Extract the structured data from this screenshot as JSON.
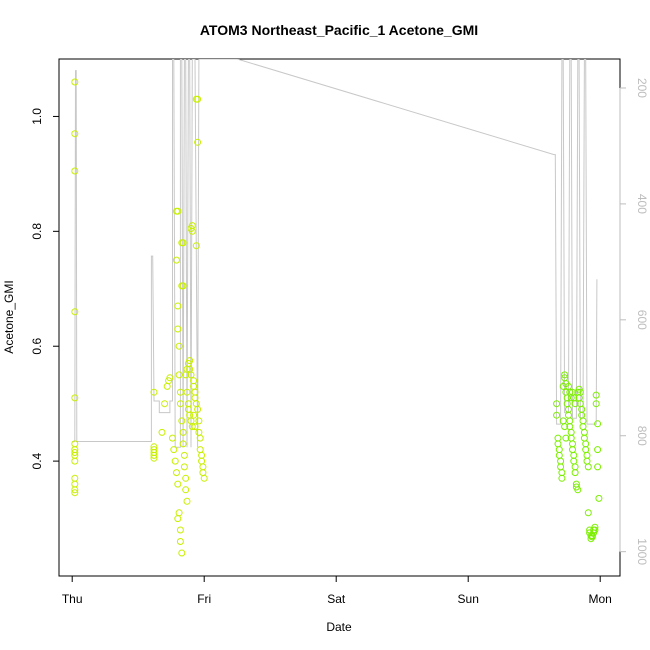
{
  "chart_data": {
    "type": "scatter",
    "title": "ATOM3 Northeast_Pacific_1 Acetone_GMI",
    "xlabel": "Date",
    "ylabel": "Acetone_GMI",
    "x_ticks": [
      "Thu",
      "Fri",
      "Sat",
      "Sun",
      "Mon"
    ],
    "x_unit": "days since Thursday 00:00",
    "xlim": [
      -0.1,
      4.15
    ],
    "ylim": [
      0.2,
      1.1
    ],
    "y_ticks": [
      0.4,
      0.6,
      0.8,
      1.0
    ],
    "y_tick_labels": [
      "0.4",
      "0.6",
      "0.8",
      "1.0"
    ],
    "y2_ticks": [
      200,
      400,
      600,
      800,
      1000
    ],
    "y2_tick_labels": [
      "200",
      "400",
      "600",
      "800",
      "1000"
    ],
    "y2lim": [
      1042,
      150
    ],
    "colors": {
      "points_early": "#c8f000",
      "points_late": "#7cf000",
      "pressure_line": "#c8c8c8",
      "axes": "#000000",
      "right_axis": "#bdbdbd"
    },
    "series": [
      {
        "role": "acetone",
        "color_key": "points_early",
        "points": [
          [
            0.02,
            1.06
          ],
          [
            0.02,
            0.97
          ],
          [
            0.02,
            0.905
          ],
          [
            0.02,
            0.66
          ],
          [
            0.02,
            0.51
          ],
          [
            0.02,
            0.43
          ],
          [
            0.02,
            0.42
          ],
          [
            0.02,
            0.415
          ],
          [
            0.02,
            0.41
          ],
          [
            0.02,
            0.4
          ],
          [
            0.02,
            0.37
          ],
          [
            0.02,
            0.36
          ],
          [
            0.02,
            0.35
          ],
          [
            0.02,
            0.345
          ],
          [
            0.62,
            0.52
          ],
          [
            0.62,
            0.425
          ],
          [
            0.62,
            0.42
          ],
          [
            0.62,
            0.415
          ],
          [
            0.62,
            0.41
          ],
          [
            0.62,
            0.405
          ],
          [
            0.68,
            0.45
          ],
          [
            0.7,
            0.5
          ],
          [
            0.72,
            0.53
          ],
          [
            0.73,
            0.54
          ],
          [
            0.74,
            0.545
          ],
          [
            0.76,
            0.44
          ],
          [
            0.77,
            0.42
          ],
          [
            0.78,
            0.4
          ],
          [
            0.79,
            0.38
          ],
          [
            0.8,
            0.36
          ],
          [
            0.8,
            0.3
          ],
          [
            0.81,
            0.31
          ],
          [
            0.82,
            0.28
          ],
          [
            0.82,
            0.26
          ],
          [
            0.83,
            0.24
          ],
          [
            0.79,
            0.835
          ],
          [
            0.8,
            0.835
          ],
          [
            0.79,
            0.75
          ],
          [
            0.8,
            0.67
          ],
          [
            0.8,
            0.63
          ],
          [
            0.83,
            0.78
          ],
          [
            0.84,
            0.78
          ],
          [
            0.83,
            0.705
          ],
          [
            0.84,
            0.705
          ],
          [
            0.81,
            0.6
          ],
          [
            0.81,
            0.55
          ],
          [
            0.82,
            0.52
          ],
          [
            0.82,
            0.5
          ],
          [
            0.83,
            0.47
          ],
          [
            0.84,
            0.45
          ],
          [
            0.84,
            0.43
          ],
          [
            0.85,
            0.41
          ],
          [
            0.85,
            0.39
          ],
          [
            0.86,
            0.37
          ],
          [
            0.86,
            0.35
          ],
          [
            0.87,
            0.33
          ],
          [
            0.87,
            0.56
          ],
          [
            0.88,
            0.57
          ],
          [
            0.89,
            0.575
          ],
          [
            0.89,
            0.56
          ],
          [
            0.9,
            0.55
          ],
          [
            0.9,
            0.805
          ],
          [
            0.91,
            0.8
          ],
          [
            0.91,
            0.81
          ],
          [
            0.88,
            0.49
          ],
          [
            0.89,
            0.48
          ],
          [
            0.9,
            0.47
          ],
          [
            0.91,
            0.46
          ],
          [
            0.92,
            0.54
          ],
          [
            0.92,
            0.53
          ],
          [
            0.93,
            0.52
          ],
          [
            0.93,
            0.51
          ],
          [
            0.94,
            0.5
          ],
          [
            0.94,
            1.03
          ],
          [
            0.95,
            1.03
          ],
          [
            0.95,
            0.955
          ],
          [
            0.94,
            0.775
          ],
          [
            0.95,
            0.49
          ],
          [
            0.96,
            0.47
          ],
          [
            0.96,
            0.45
          ],
          [
            0.97,
            0.44
          ],
          [
            0.97,
            0.42
          ],
          [
            0.98,
            0.41
          ],
          [
            0.98,
            0.4
          ],
          [
            0.99,
            0.39
          ],
          [
            0.99,
            0.38
          ],
          [
            1.0,
            0.37
          ],
          [
            0.86,
            0.55
          ],
          [
            0.87,
            0.52
          ],
          [
            0.88,
            0.5
          ],
          [
            0.92,
            0.48
          ],
          [
            0.93,
            0.46
          ]
        ]
      },
      {
        "role": "acetone",
        "color_key": "points_late",
        "points": [
          [
            3.67,
            0.5
          ],
          [
            3.67,
            0.48
          ],
          [
            3.68,
            0.44
          ],
          [
            3.68,
            0.43
          ],
          [
            3.69,
            0.42
          ],
          [
            3.69,
            0.41
          ],
          [
            3.7,
            0.4
          ],
          [
            3.7,
            0.39
          ],
          [
            3.71,
            0.38
          ],
          [
            3.71,
            0.37
          ],
          [
            3.72,
            0.53
          ],
          [
            3.73,
            0.545
          ],
          [
            3.73,
            0.55
          ],
          [
            3.74,
            0.535
          ],
          [
            3.74,
            0.52
          ],
          [
            3.75,
            0.51
          ],
          [
            3.75,
            0.5
          ],
          [
            3.76,
            0.49
          ],
          [
            3.76,
            0.48
          ],
          [
            3.77,
            0.47
          ],
          [
            3.77,
            0.46
          ],
          [
            3.78,
            0.45
          ],
          [
            3.78,
            0.44
          ],
          [
            3.79,
            0.43
          ],
          [
            3.79,
            0.42
          ],
          [
            3.8,
            0.41
          ],
          [
            3.8,
            0.4
          ],
          [
            3.81,
            0.39
          ],
          [
            3.81,
            0.38
          ],
          [
            3.82,
            0.36
          ],
          [
            3.82,
            0.355
          ],
          [
            3.83,
            0.35
          ],
          [
            3.83,
            0.52
          ],
          [
            3.84,
            0.51
          ],
          [
            3.84,
            0.525
          ],
          [
            3.85,
            0.52
          ],
          [
            3.85,
            0.5
          ],
          [
            3.86,
            0.49
          ],
          [
            3.86,
            0.48
          ],
          [
            3.87,
            0.47
          ],
          [
            3.87,
            0.46
          ],
          [
            3.88,
            0.45
          ],
          [
            3.88,
            0.44
          ],
          [
            3.89,
            0.43
          ],
          [
            3.89,
            0.42
          ],
          [
            3.9,
            0.41
          ],
          [
            3.9,
            0.4
          ],
          [
            3.91,
            0.39
          ],
          [
            3.91,
            0.31
          ],
          [
            3.92,
            0.28
          ],
          [
            3.92,
            0.275
          ],
          [
            3.93,
            0.27
          ],
          [
            3.93,
            0.265
          ],
          [
            3.94,
            0.268
          ],
          [
            3.94,
            0.27
          ],
          [
            3.95,
            0.275
          ],
          [
            3.95,
            0.28
          ],
          [
            3.96,
            0.28
          ],
          [
            3.96,
            0.285
          ],
          [
            3.97,
            0.515
          ],
          [
            3.97,
            0.5
          ],
          [
            3.98,
            0.465
          ],
          [
            3.98,
            0.42
          ],
          [
            3.98,
            0.39
          ],
          [
            3.99,
            0.335
          ],
          [
            3.79,
            0.52
          ],
          [
            3.8,
            0.51
          ],
          [
            3.81,
            0.5
          ],
          [
            3.76,
            0.53
          ],
          [
            3.77,
            0.52
          ],
          [
            3.78,
            0.51
          ],
          [
            3.72,
            0.47
          ],
          [
            3.73,
            0.46
          ],
          [
            3.74,
            0.44
          ]
        ]
      },
      {
        "role": "pressure",
        "color_key": "pressure_line",
        "points": [
          [
            0.0,
            810
          ],
          [
            0.01,
            810
          ],
          [
            0.02,
            810
          ],
          [
            0.025,
            170
          ],
          [
            0.03,
            170
          ],
          [
            0.035,
            810
          ],
          [
            0.6,
            810
          ],
          [
            0.6,
            810
          ],
          [
            0.6,
            490
          ],
          [
            0.61,
            490
          ],
          [
            0.62,
            740
          ],
          [
            0.66,
            740
          ],
          [
            0.66,
            760
          ],
          [
            0.74,
            760
          ],
          [
            0.74,
            740
          ],
          [
            0.76,
            740
          ],
          [
            0.76,
            150
          ],
          [
            0.77,
            150
          ],
          [
            0.78,
            820
          ],
          [
            0.82,
            820
          ],
          [
            0.82,
            150
          ],
          [
            0.83,
            150
          ],
          [
            0.84,
            820
          ],
          [
            0.85,
            150
          ],
          [
            0.86,
            150
          ],
          [
            0.87,
            820
          ],
          [
            0.88,
            150
          ],
          [
            0.89,
            150
          ],
          [
            0.9,
            820
          ],
          [
            0.91,
            150
          ],
          [
            0.93,
            150
          ],
          [
            0.95,
            820
          ],
          [
            0.96,
            150
          ],
          [
            1.0,
            150
          ],
          [
            1.1,
            150
          ],
          [
            1.25,
            150
          ],
          [
            3.65,
            315
          ],
          [
            3.66,
            315
          ],
          [
            3.67,
            780
          ],
          [
            3.7,
            780
          ],
          [
            3.71,
            150
          ],
          [
            3.72,
            150
          ],
          [
            3.73,
            760
          ],
          [
            3.76,
            760
          ],
          [
            3.77,
            150
          ],
          [
            3.78,
            150
          ],
          [
            3.79,
            770
          ],
          [
            3.82,
            770
          ],
          [
            3.83,
            150
          ],
          [
            3.84,
            150
          ],
          [
            3.85,
            770
          ],
          [
            3.87,
            770
          ],
          [
            3.88,
            150
          ],
          [
            3.89,
            150
          ],
          [
            3.9,
            780
          ],
          [
            3.95,
            780
          ],
          [
            3.96,
            780
          ],
          [
            3.97,
            780
          ],
          [
            3.975,
            530
          ]
        ]
      }
    ]
  }
}
